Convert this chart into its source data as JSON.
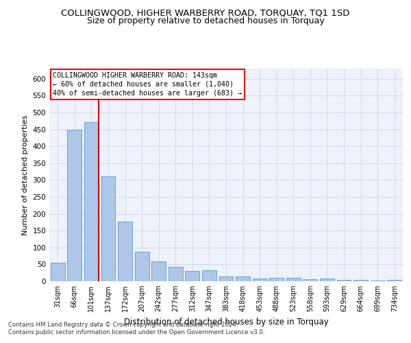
{
  "title": "COLLINGWOOD, HIGHER WARBERRY ROAD, TORQUAY, TQ1 1SD",
  "subtitle": "Size of property relative to detached houses in Torquay",
  "xlabel": "Distribution of detached houses by size in Torquay",
  "ylabel": "Number of detached properties",
  "footnote1": "Contains HM Land Registry data © Crown copyright and database right 2024.",
  "footnote2": "Contains public sector information licensed under the Open Government Licence v3.0.",
  "categories": [
    "31sqm",
    "66sqm",
    "101sqm",
    "137sqm",
    "172sqm",
    "207sqm",
    "242sqm",
    "277sqm",
    "312sqm",
    "347sqm",
    "383sqm",
    "418sqm",
    "453sqm",
    "488sqm",
    "523sqm",
    "558sqm",
    "593sqm",
    "629sqm",
    "664sqm",
    "699sqm",
    "734sqm"
  ],
  "values": [
    55,
    450,
    472,
    310,
    176,
    88,
    58,
    43,
    30,
    32,
    15,
    15,
    9,
    10,
    10,
    6,
    8,
    5,
    5,
    3,
    5
  ],
  "bar_color": "#aec6e8",
  "bar_edge_color": "#5b9bd5",
  "grid_color": "#d0d8e8",
  "annotation_box_text_line1": "COLLINGWOOD HIGHER WARBERRY ROAD: 143sqm",
  "annotation_box_text_line2": "← 60% of detached houses are smaller (1,040)",
  "annotation_box_text_line3": "40% of semi-detached houses are larger (683) →",
  "red_line_x": 2.43,
  "red_line_color": "#cc0000",
  "ylim_max": 630,
  "yticks": [
    0,
    50,
    100,
    150,
    200,
    250,
    300,
    350,
    400,
    450,
    500,
    550,
    600
  ],
  "bg_color": "#eef2fa",
  "title_fontsize": 9.5,
  "subtitle_fontsize": 9
}
